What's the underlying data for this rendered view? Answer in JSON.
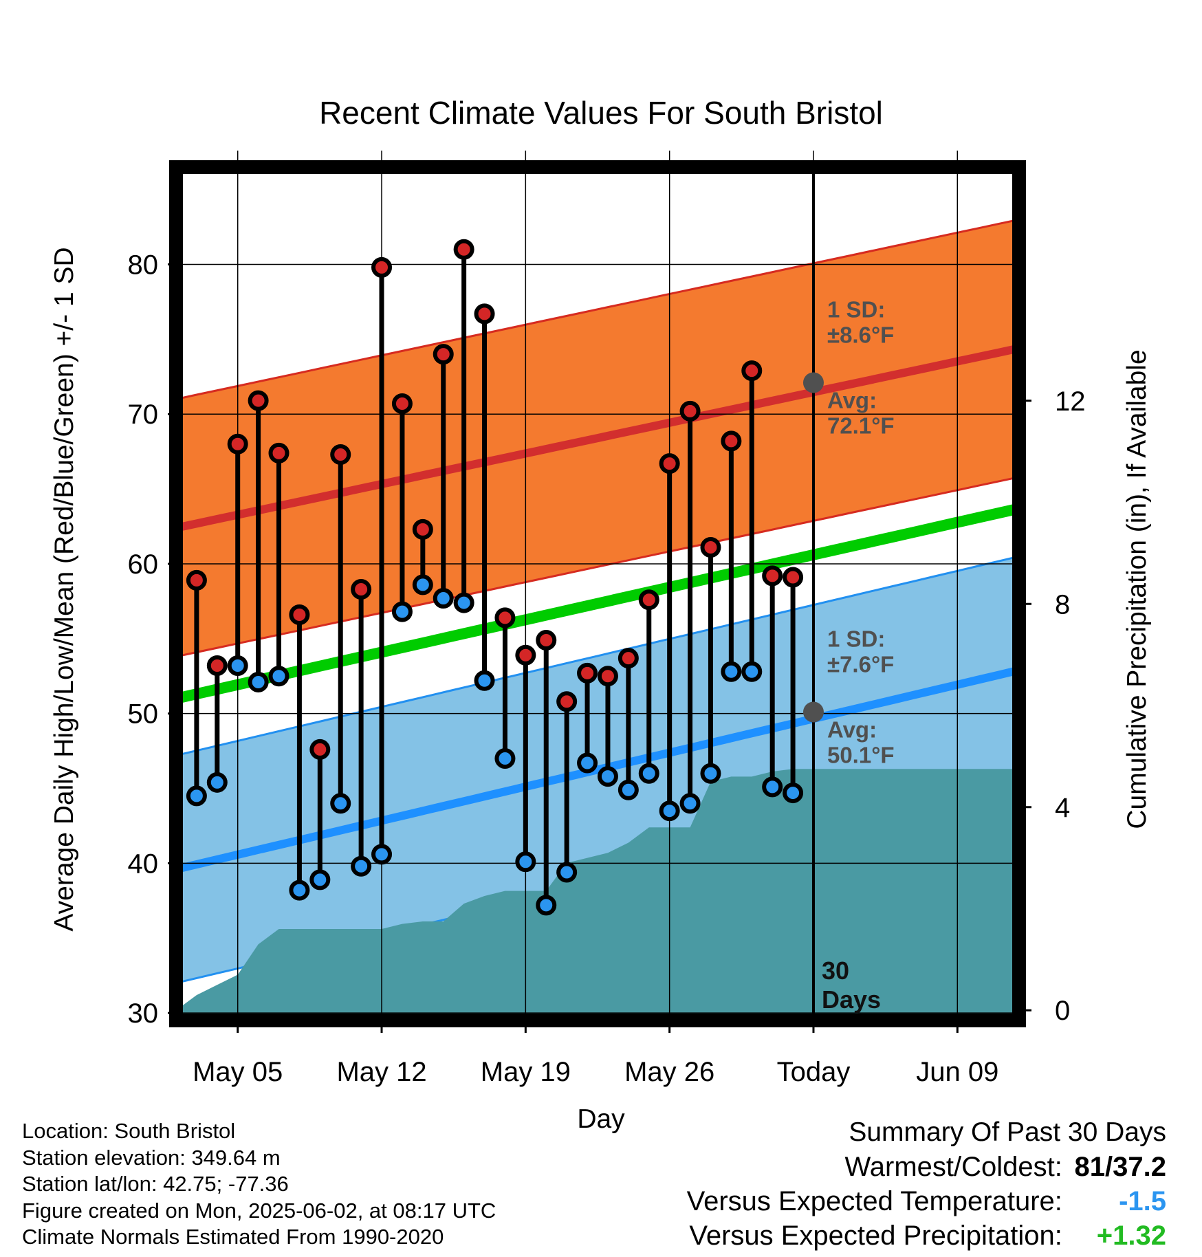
{
  "chart_data": {
    "type": "line",
    "title": "Recent Climate Values For South Bristol",
    "xlabel": "Day",
    "ylabel": "Average Daily High/Low/Mean (Red/Blue/Green) +/- 1 SD",
    "y2label": "Cumulative Precipitation (in), If Available",
    "x_range": [
      "2025-05-02",
      "2025-06-12"
    ],
    "x_ticks": [
      {
        "date": "2025-05-05",
        "label": "May 05"
      },
      {
        "date": "2025-05-12",
        "label": "May 12"
      },
      {
        "date": "2025-05-19",
        "label": "May 19"
      },
      {
        "date": "2025-05-26",
        "label": "May 26"
      },
      {
        "date": "2025-06-02",
        "label": "Today"
      },
      {
        "date": "2025-06-09",
        "label": "Jun 09"
      }
    ],
    "ylim": [
      29.5,
      86.5
    ],
    "y_ticks": [
      30,
      40,
      50,
      60,
      70,
      80
    ],
    "y2lim": [
      -0.2,
      16.6
    ],
    "y2_ticks": [
      0,
      4,
      8,
      12
    ],
    "grid": true,
    "today": "2025-06-02",
    "today_label": "30\nDays",
    "daily_observations": {
      "dates": [
        "2025-05-03",
        "2025-05-04",
        "2025-05-05",
        "2025-05-06",
        "2025-05-07",
        "2025-05-08",
        "2025-05-09",
        "2025-05-10",
        "2025-05-11",
        "2025-05-12",
        "2025-05-13",
        "2025-05-14",
        "2025-05-15",
        "2025-05-16",
        "2025-05-17",
        "2025-05-18",
        "2025-05-19",
        "2025-05-20",
        "2025-05-21",
        "2025-05-22",
        "2025-05-23",
        "2025-05-24",
        "2025-05-25",
        "2025-05-26",
        "2025-05-27",
        "2025-05-28",
        "2025-05-29",
        "2025-05-30",
        "2025-05-31",
        "2025-06-01"
      ],
      "high": [
        58.9,
        53.2,
        68.0,
        70.9,
        67.4,
        56.6,
        47.6,
        67.3,
        58.3,
        79.8,
        70.7,
        62.3,
        74.0,
        81.0,
        76.7,
        56.4,
        53.9,
        54.9,
        50.8,
        52.7,
        52.5,
        53.7,
        57.6,
        66.7,
        70.2,
        61.1,
        68.2,
        72.9,
        59.2,
        59.1
      ],
      "low": [
        44.5,
        45.4,
        53.2,
        52.1,
        52.5,
        38.2,
        38.9,
        44.0,
        39.8,
        40.6,
        56.8,
        58.6,
        57.7,
        57.4,
        52.2,
        47.0,
        40.1,
        37.2,
        39.4,
        46.7,
        45.8,
        44.9,
        46.0,
        43.5,
        44.0,
        46.0,
        52.8,
        52.8,
        45.1,
        44.7
      ]
    },
    "normals": {
      "dates": [
        "2025-05-02",
        "2025-06-12"
      ],
      "avg_high": [
        62.4,
        74.4
      ],
      "high_sd": 8.6,
      "avg_low": [
        39.6,
        52.9
      ],
      "low_sd": 7.6,
      "avg_mean": [
        51.0,
        63.7
      ]
    },
    "annotations": [
      {
        "series": "high",
        "date": "2025-06-02",
        "value": 72.1,
        "sd_label": "1 SD:",
        "sd_text": "±8.6°F",
        "avg_label": "Avg:",
        "avg_text": "72.1°F"
      },
      {
        "series": "low",
        "date": "2025-06-02",
        "value": 50.1,
        "sd_label": "1 SD:",
        "sd_text": "±7.6°F",
        "avg_label": "Avg:",
        "avg_text": "50.1°F"
      }
    ],
    "precipitation": {
      "dates": [
        "2025-05-02",
        "2025-05-03",
        "2025-05-04",
        "2025-05-05",
        "2025-05-06",
        "2025-05-07",
        "2025-05-08",
        "2025-05-09",
        "2025-05-10",
        "2025-05-11",
        "2025-05-12",
        "2025-05-13",
        "2025-05-14",
        "2025-05-15",
        "2025-05-16",
        "2025-05-17",
        "2025-05-18",
        "2025-05-19",
        "2025-05-20",
        "2025-05-21",
        "2025-05-22",
        "2025-05-23",
        "2025-05-24",
        "2025-05-25",
        "2025-05-26",
        "2025-05-27",
        "2025-05-28",
        "2025-05-29",
        "2025-05-30",
        "2025-05-31",
        "2025-06-01",
        "2025-06-02",
        "2025-06-12"
      ],
      "cumulative_in": [
        0.0,
        0.3,
        0.5,
        0.7,
        1.3,
        1.6,
        1.6,
        1.6,
        1.6,
        1.6,
        1.6,
        1.7,
        1.75,
        1.75,
        2.1,
        2.25,
        2.35,
        2.35,
        2.35,
        2.9,
        3.0,
        3.1,
        3.3,
        3.6,
        3.6,
        3.6,
        4.5,
        4.6,
        4.6,
        4.7,
        4.75,
        4.75,
        4.75
      ]
    },
    "colors": {
      "high_band": "#f47a2f",
      "high_band_edge": "#d62b20",
      "high_avg": "#d22e2e",
      "high_dot": "#d42626",
      "low_band": "#84c2e6",
      "low_band_edge": "#2290f0",
      "low_avg": "#1e90ff",
      "low_dot": "#2b95f0",
      "mean_avg": "#00cc00",
      "precip": "#4a9aa3",
      "annotation": "#505050"
    }
  },
  "footer": {
    "location": "Location: South Bristol",
    "elevation": "Station elevation: 349.64 m",
    "latlon": "Station lat/lon: 42.75; -77.36",
    "created": "Figure created on Mon, 2025-06-02, at 08:17 UTC",
    "normals": "Climate Normals Estimated From 1990-2020"
  },
  "summary": {
    "heading": "Summary Of Past 30 Days",
    "warm_cold_label": "Warmest/Coldest:",
    "warmest": "81",
    "coldest": "37.2",
    "temp_label": "Versus Expected Temperature:",
    "temp_value": "-1.5",
    "temp_color": "#2b95f0",
    "precip_label": "Versus Expected Precipitation:",
    "precip_value": "+1.32",
    "precip_color": "#22bb22"
  }
}
